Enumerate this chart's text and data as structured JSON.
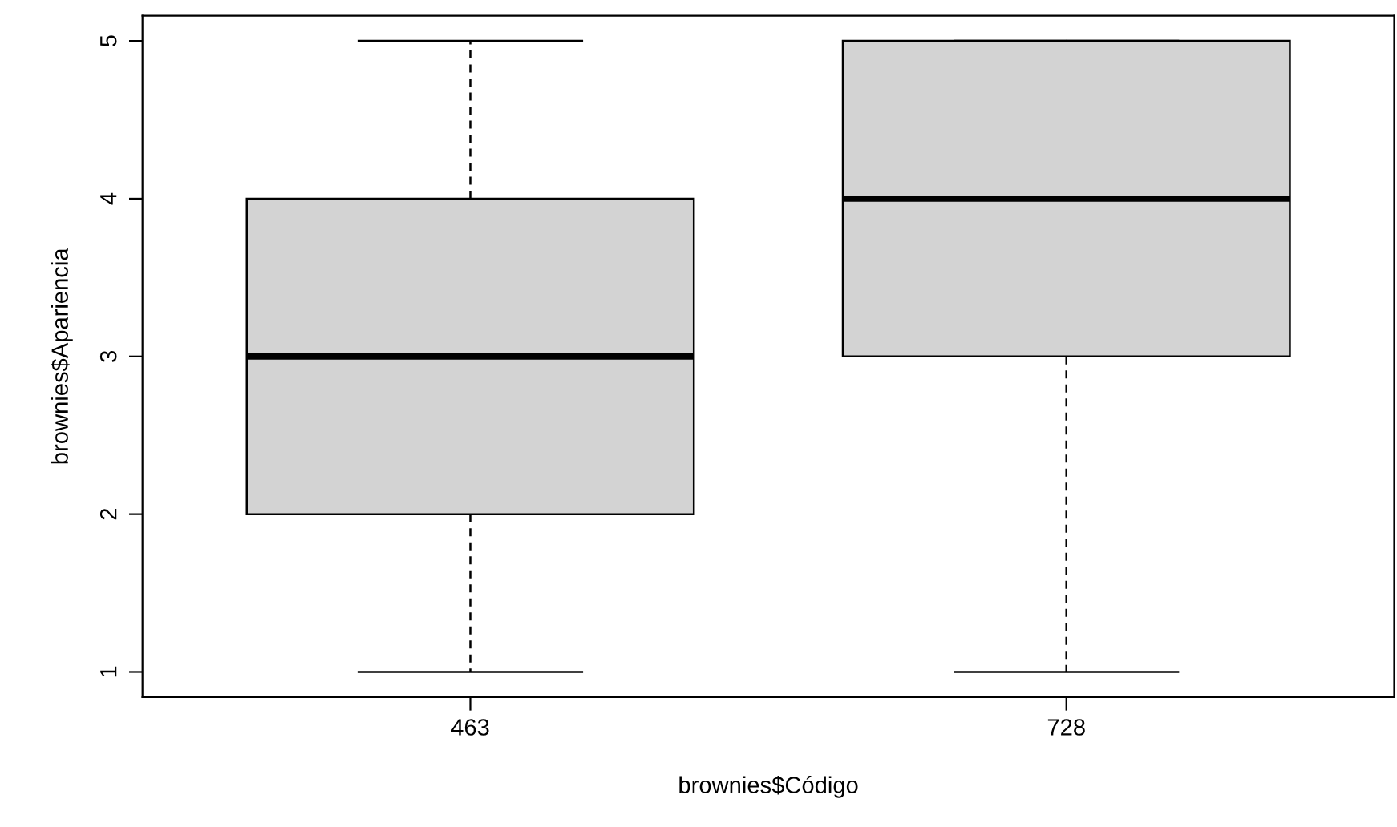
{
  "chart_data": {
    "type": "box",
    "xlabel": "brownies$Código",
    "ylabel": "brownies$Apariencia",
    "categories": [
      "463",
      "728"
    ],
    "boxes": [
      {
        "low": 1,
        "q1": 2,
        "median": 3,
        "q3": 4,
        "high": 5
      },
      {
        "low": 1,
        "q1": 3,
        "median": 4,
        "q3": 5,
        "high": 5
      }
    ],
    "color": "#d3d3d3",
    "ylim": [
      0.84,
      5.16
    ],
    "yticks": [
      1,
      2,
      3,
      4,
      5
    ],
    "grid": false,
    "legend": false
  }
}
